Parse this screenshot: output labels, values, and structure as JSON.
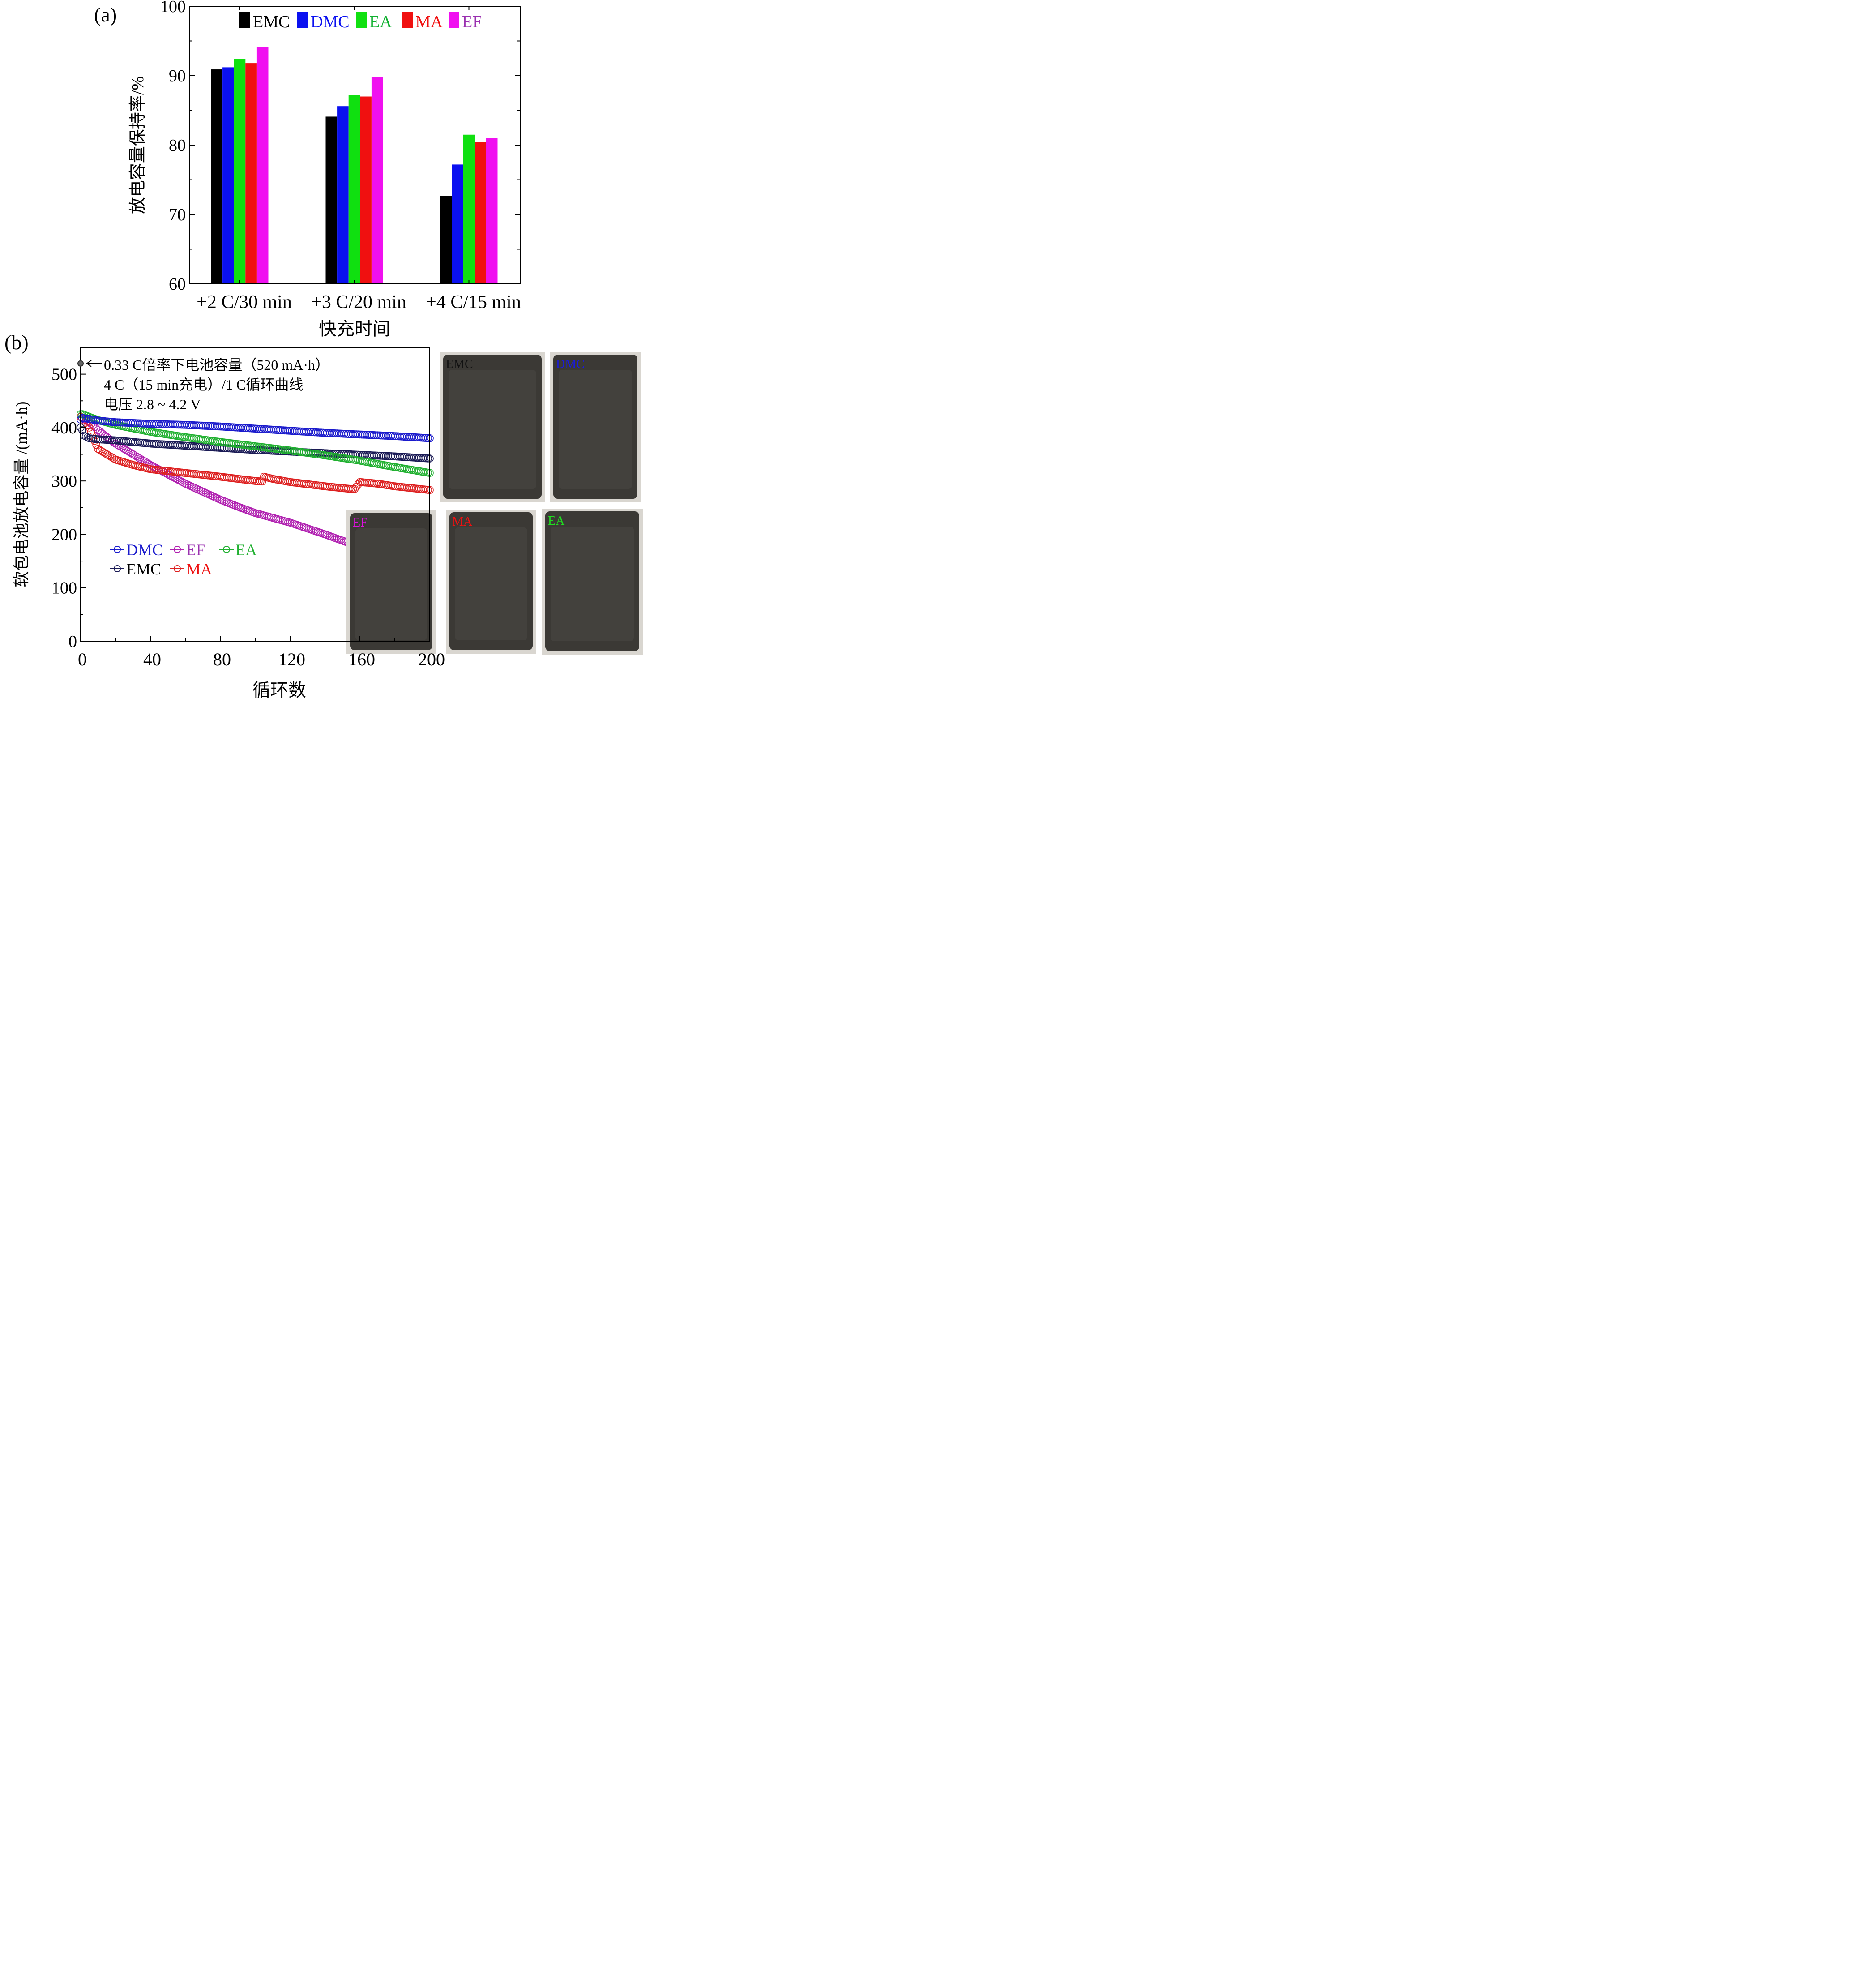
{
  "panel_a": {
    "label": "(a)",
    "ylabel": "放电容量保持率/%",
    "xlabel": "快充时间",
    "yticks": [
      "60",
      "70",
      "80",
      "90",
      "100"
    ],
    "legend": [
      {
        "name": "EMC",
        "color": "#000000"
      },
      {
        "name": "DMC",
        "color": "#0a10f0"
      },
      {
        "name": "EA",
        "color": "#10e010"
      },
      {
        "name": "MA",
        "color": "#f01010"
      },
      {
        "name": "EF",
        "color": "#f010f0"
      }
    ]
  },
  "panel_b": {
    "label": "(b)",
    "ylabel": "软包电池放电容量 /(mA·h)",
    "xlabel": "循环数",
    "yticks": [
      "0",
      "100",
      "200",
      "300",
      "400",
      "500"
    ],
    "xticks": [
      "0",
      "40",
      "80",
      "120",
      "160",
      "200"
    ],
    "annotation_lines": [
      "0.33 C倍率下电池容量（520 mA·h）",
      "4 C（15 min充电）/1 C循环曲线",
      "电压 2.8 ~ 4.2 V"
    ],
    "legend": [
      {
        "name": "DMC",
        "color": "#1a1acc"
      },
      {
        "name": "EF",
        "color": "#b020b0"
      },
      {
        "name": "EA",
        "color": "#20b030"
      },
      {
        "name": "EMC",
        "color": "#1a1a55"
      },
      {
        "name": "MA",
        "color": "#dd2020"
      }
    ],
    "photos": [
      {
        "label": "EMC",
        "color": "#111111"
      },
      {
        "label": "DMC",
        "color": "#1a1ae0"
      },
      {
        "label": "EF",
        "color": "#e010e0"
      },
      {
        "label": "MA",
        "color": "#ee1111"
      },
      {
        "label": "EA",
        "color": "#20dd20"
      }
    ]
  },
  "chart_data": [
    {
      "type": "bar",
      "categories": [
        "+2 C/30 min",
        "+3 C/20 min",
        "+4 C/15 min"
      ],
      "series": [
        {
          "name": "EMC",
          "values": [
            90.9,
            84.1,
            72.7
          ]
        },
        {
          "name": "DMC",
          "values": [
            91.2,
            85.6,
            77.2
          ]
        },
        {
          "name": "EA",
          "values": [
            92.4,
            87.2,
            81.5
          ]
        },
        {
          "name": "MA",
          "values": [
            91.8,
            87.0,
            80.4
          ]
        },
        {
          "name": "EF",
          "values": [
            94.1,
            89.8,
            81.0
          ]
        }
      ],
      "xlabel": "快充时间",
      "ylabel": "放电容量保持率/%",
      "ylim": [
        60,
        100
      ],
      "legend_position": "top"
    },
    {
      "type": "scatter",
      "xlabel": "循环数",
      "ylabel": "软包电池放电容量 /(mA·h)",
      "xlim": [
        0,
        200
      ],
      "ylim": [
        0,
        550
      ],
      "marker_point": {
        "x": 0,
        "y": 520
      },
      "series": [
        {
          "name": "DMC",
          "x": [
            0,
            1,
            5,
            10,
            20,
            40,
            60,
            80,
            100,
            120,
            140,
            160,
            180,
            200
          ],
          "y": [
            415,
            418,
            416,
            413,
            410,
            407,
            405,
            402,
            398,
            394,
            390,
            387,
            384,
            380
          ]
        },
        {
          "name": "EF",
          "x": [
            0,
            5,
            10,
            20,
            40,
            60,
            80,
            90,
            100,
            120,
            140,
            157
          ],
          "y": [
            420,
            410,
            395,
            370,
            330,
            295,
            265,
            252,
            240,
            222,
            200,
            180
          ]
        },
        {
          "name": "EA",
          "x": [
            0,
            1,
            5,
            10,
            20,
            40,
            60,
            80,
            100,
            120,
            140,
            160,
            180,
            200
          ],
          "y": [
            425,
            425,
            420,
            414,
            405,
            392,
            382,
            373,
            365,
            357,
            348,
            338,
            326,
            315
          ]
        },
        {
          "name": "EMC",
          "x": [
            0,
            1,
            2,
            5,
            10,
            20,
            40,
            60,
            80,
            100,
            120,
            140,
            160,
            180,
            200
          ],
          "y": [
            400,
            395,
            385,
            380,
            378,
            376,
            370,
            366,
            362,
            358,
            355,
            352,
            349,
            346,
            342
          ]
        },
        {
          "name": "MA",
          "x": [
            0,
            1,
            5,
            8,
            10,
            15,
            20,
            30,
            40,
            60,
            80,
            100,
            104,
            105,
            110,
            120,
            140,
            155,
            157,
            160,
            170,
            180,
            200
          ],
          "y": [
            420,
            418,
            400,
            375,
            360,
            350,
            340,
            330,
            322,
            315,
            308,
            300,
            299,
            308,
            304,
            298,
            290,
            285,
            285,
            298,
            295,
            290,
            283
          ]
        }
      ]
    }
  ]
}
